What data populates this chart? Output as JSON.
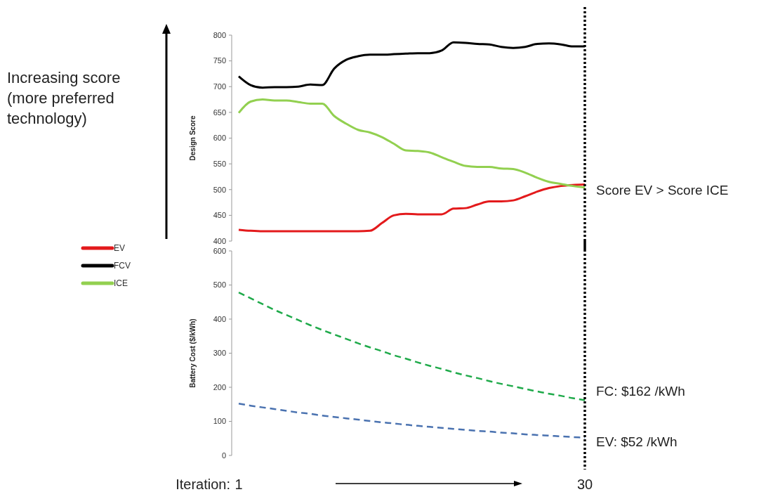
{
  "chart_data": [
    {
      "type": "line",
      "ylabel": "Design Score",
      "x": [
        1,
        2,
        3,
        4,
        5,
        6,
        7,
        8,
        9,
        10,
        11,
        12,
        13,
        14,
        15,
        16,
        17,
        18,
        19,
        20,
        21,
        22,
        23,
        24,
        25,
        26,
        27,
        28,
        29,
        30
      ],
      "xlim": [
        1,
        30
      ],
      "ylim": [
        400,
        800
      ],
      "yticks": [
        400,
        450,
        500,
        550,
        600,
        650,
        700,
        750,
        800
      ],
      "tick_labels": "y",
      "legend": "left",
      "grid": false,
      "line_style": "solid",
      "series": [
        {
          "name": "EV",
          "color": "#e31a1c",
          "values": [
            422,
            420,
            419,
            419,
            419,
            419,
            419,
            419,
            419,
            419,
            419,
            420,
            435,
            450,
            453,
            452,
            452,
            452,
            463,
            464,
            471,
            477,
            477,
            479,
            487,
            496,
            503,
            507,
            509,
            510
          ]
        },
        {
          "name": "FCV",
          "color": "#000000",
          "values": [
            720,
            703,
            698,
            699,
            699,
            700,
            704,
            703,
            735,
            752,
            759,
            762,
            762,
            763,
            764,
            765,
            765,
            770,
            786,
            785,
            783,
            782,
            777,
            775,
            777,
            783,
            784,
            782,
            778,
            778
          ]
        },
        {
          "name": "ICE",
          "color": "#92d050",
          "values": [
            649,
            671,
            675,
            673,
            673,
            670,
            667,
            667,
            643,
            628,
            616,
            611,
            602,
            589,
            576,
            575,
            572,
            563,
            554,
            546,
            544,
            544,
            541,
            540,
            533,
            523,
            515,
            511,
            507,
            504
          ]
        }
      ],
      "ref_lines": [
        {
          "axis": "x",
          "value": 30,
          "color": "#000000",
          "line_style": "dotted"
        }
      ],
      "annotations": [
        "Increasing score (more preferred technology)",
        "Score EV > Score ICE"
      ]
    },
    {
      "type": "line",
      "ylabel": "Battery Cost ($/kWh)",
      "xlabel": "Iteration:",
      "x": [
        1,
        2,
        3,
        4,
        5,
        6,
        7,
        8,
        9,
        10,
        11,
        12,
        13,
        14,
        15,
        16,
        17,
        18,
        19,
        20,
        21,
        22,
        23,
        24,
        25,
        26,
        27,
        28,
        29,
        30
      ],
      "xlim": [
        1,
        30
      ],
      "xticks": [
        1,
        30
      ],
      "ylim": [
        0,
        600
      ],
      "yticks": [
        0,
        100,
        200,
        300,
        400,
        500,
        600
      ],
      "grid": false,
      "line_style": "dashed",
      "series": [
        {
          "color": "#1faa4a",
          "values": [
            478,
            461,
            444,
            427,
            412,
            397,
            382,
            368,
            355,
            342,
            329,
            317,
            306,
            294,
            284,
            273,
            263,
            254,
            244,
            235,
            227,
            218,
            210,
            203,
            195,
            188,
            181,
            175,
            168,
            162
          ]
        },
        {
          "color": "#4a72b0",
          "values": [
            152,
            146,
            141,
            136,
            131,
            126,
            122,
            117,
            113,
            109,
            105,
            101,
            97,
            94,
            90,
            87,
            84,
            81,
            78,
            75,
            72,
            70,
            67,
            65,
            62,
            60,
            58,
            56,
            54,
            52
          ]
        }
      ],
      "ref_lines": [
        {
          "axis": "x",
          "value": 30,
          "color": "#000000",
          "line_style": "dotted"
        }
      ],
      "annotations": [
        "FC: $162 /kWh",
        "EV: $52 /kWh"
      ]
    }
  ]
}
